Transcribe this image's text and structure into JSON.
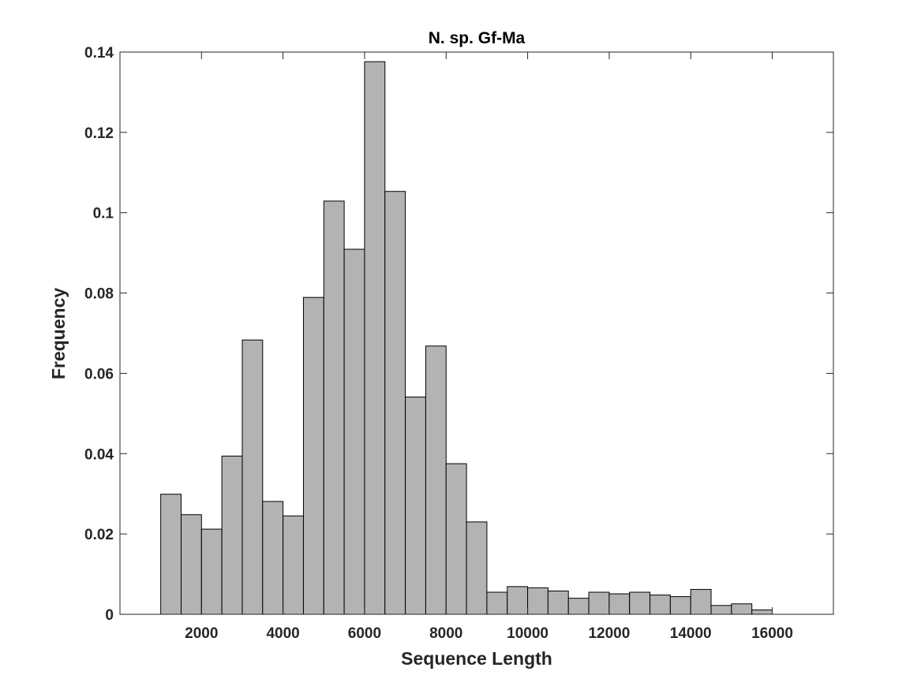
{
  "chart_data": {
    "type": "bar",
    "title": "N. sp. Gf-Ma",
    "xlabel": "Sequence Length",
    "ylabel": "Frequency",
    "xlim": [
      0,
      17500
    ],
    "ylim": [
      0,
      0.14
    ],
    "bin_width": 500,
    "bin_edges_start": [
      1000,
      1500,
      2000,
      2500,
      3000,
      3500,
      4000,
      4500,
      5000,
      5500,
      6000,
      6500,
      7000,
      7500,
      8000,
      8500,
      9000,
      9500,
      10000,
      10500,
      11000,
      11500,
      12000,
      12500,
      13000,
      13500,
      14000,
      14500,
      15000,
      15500
    ],
    "values": [
      0.0299,
      0.0248,
      0.0212,
      0.0394,
      0.0683,
      0.0281,
      0.0245,
      0.0789,
      0.1029,
      0.0909,
      0.1376,
      0.1053,
      0.0541,
      0.0668,
      0.0375,
      0.023,
      0.0055,
      0.0069,
      0.0066,
      0.0058,
      0.004,
      0.0055,
      0.0051,
      0.0055,
      0.0048,
      0.0044,
      0.0062,
      0.0022,
      0.0026,
      0.0011
    ],
    "xticks": [
      2000,
      4000,
      6000,
      8000,
      10000,
      12000,
      14000,
      16000
    ],
    "xtick_labels": [
      "2000",
      "4000",
      "6000",
      "8000",
      "10000",
      "12000",
      "14000",
      "16000"
    ],
    "yticks": [
      0,
      0.02,
      0.04,
      0.06,
      0.08,
      0.1,
      0.12,
      0.14
    ],
    "ytick_labels": [
      "0",
      "0.02",
      "0.04",
      "0.06",
      "0.08",
      "0.1",
      "0.12",
      "0.14"
    ],
    "bar_color": "#b3b3b3",
    "edge_color": "#000000",
    "grid": false,
    "legend": "none"
  }
}
